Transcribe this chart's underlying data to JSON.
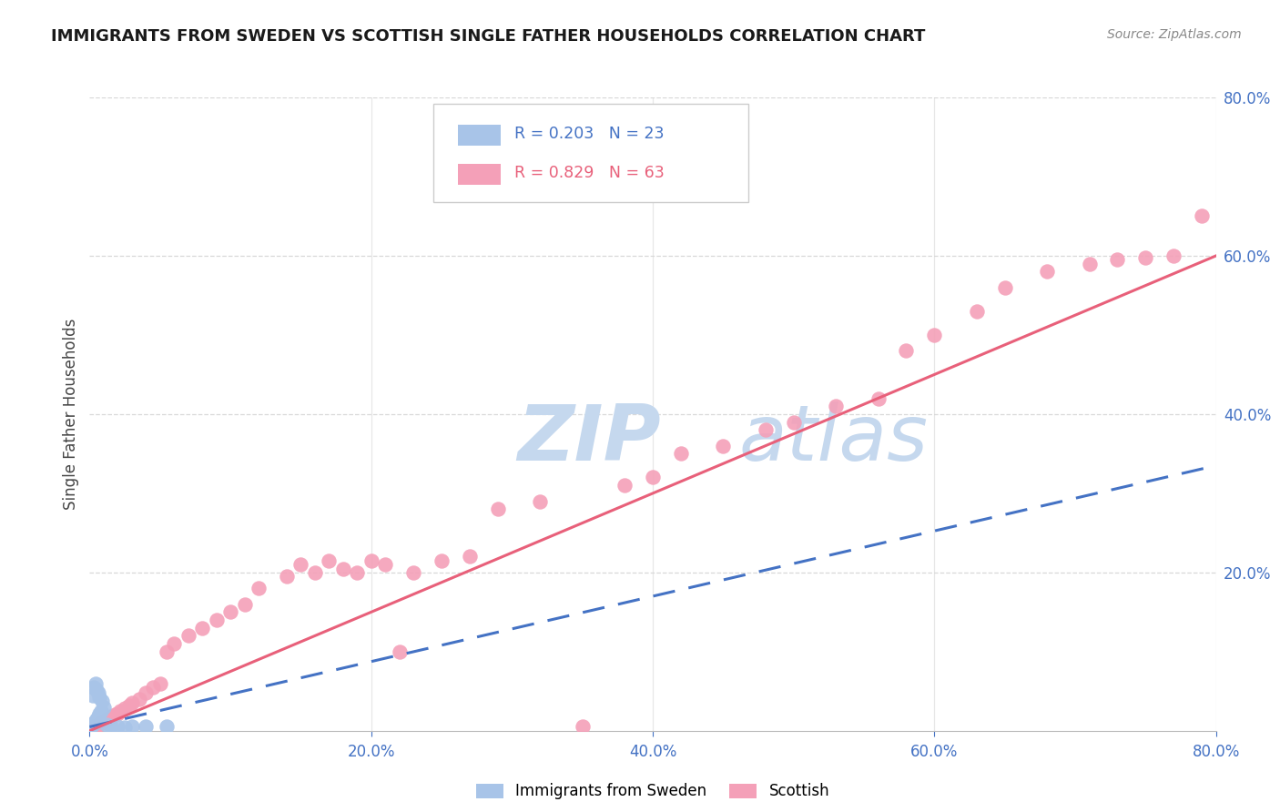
{
  "title": "IMMIGRANTS FROM SWEDEN VS SCOTTISH SINGLE FATHER HOUSEHOLDS CORRELATION CHART",
  "source": "Source: ZipAtlas.com",
  "ylabel": "Single Father Households",
  "xlim": [
    0.0,
    0.8
  ],
  "ylim": [
    0.0,
    0.8
  ],
  "xtick_vals": [
    0.0,
    0.2,
    0.4,
    0.6,
    0.8
  ],
  "xtick_labels": [
    "0.0%",
    "20.0%",
    "40.0%",
    "60.0%",
    "80.0%"
  ],
  "ytick_vals": [
    0.2,
    0.4,
    0.6,
    0.8
  ],
  "ytick_labels": [
    "20.0%",
    "40.0%",
    "60.0%",
    "80.0%"
  ],
  "sweden_R": 0.203,
  "sweden_N": 23,
  "scottish_R": 0.829,
  "scottish_N": 63,
  "sweden_color": "#a8c4e8",
  "scottish_color": "#f4a0b8",
  "sweden_line_color": "#4472c4",
  "scottish_line_color": "#e8607a",
  "watermark_zip_color": "#c5d8ee",
  "watermark_atlas_color": "#c5d8ee",
  "background_color": "#ffffff",
  "grid_color": "#d8d8d8",
  "tick_color": "#4472c4",
  "title_color": "#1a1a1a",
  "source_color": "#888888",
  "ylabel_color": "#444444",
  "sweden_x": [
    0.001,
    0.002,
    0.002,
    0.003,
    0.003,
    0.004,
    0.004,
    0.005,
    0.005,
    0.006,
    0.006,
    0.007,
    0.007,
    0.008,
    0.009,
    0.01,
    0.012,
    0.015,
    0.02,
    0.025,
    0.03,
    0.04,
    0.055
  ],
  "sweden_y": [
    0.005,
    0.008,
    0.045,
    0.01,
    0.055,
    0.012,
    0.06,
    0.015,
    0.052,
    0.018,
    0.048,
    0.022,
    0.042,
    0.025,
    0.038,
    0.03,
    0.008,
    0.006,
    0.005,
    0.004,
    0.005,
    0.006,
    0.005
  ],
  "scottish_x": [
    0.001,
    0.002,
    0.003,
    0.004,
    0.005,
    0.006,
    0.007,
    0.008,
    0.009,
    0.01,
    0.012,
    0.015,
    0.018,
    0.02,
    0.022,
    0.025,
    0.028,
    0.03,
    0.035,
    0.04,
    0.045,
    0.05,
    0.055,
    0.06,
    0.07,
    0.08,
    0.09,
    0.1,
    0.11,
    0.12,
    0.14,
    0.15,
    0.16,
    0.17,
    0.18,
    0.19,
    0.2,
    0.21,
    0.22,
    0.23,
    0.25,
    0.27,
    0.29,
    0.32,
    0.35,
    0.38,
    0.4,
    0.42,
    0.45,
    0.48,
    0.5,
    0.53,
    0.56,
    0.58,
    0.6,
    0.63,
    0.65,
    0.68,
    0.71,
    0.73,
    0.75,
    0.77,
    0.79
  ],
  "scottish_y": [
    0.002,
    0.004,
    0.005,
    0.006,
    0.007,
    0.008,
    0.009,
    0.01,
    0.011,
    0.012,
    0.015,
    0.018,
    0.02,
    0.022,
    0.025,
    0.028,
    0.032,
    0.035,
    0.04,
    0.048,
    0.055,
    0.06,
    0.1,
    0.11,
    0.12,
    0.13,
    0.14,
    0.15,
    0.16,
    0.18,
    0.195,
    0.21,
    0.2,
    0.215,
    0.205,
    0.2,
    0.215,
    0.21,
    0.1,
    0.2,
    0.215,
    0.22,
    0.28,
    0.29,
    0.005,
    0.31,
    0.32,
    0.35,
    0.36,
    0.38,
    0.39,
    0.41,
    0.42,
    0.48,
    0.5,
    0.53,
    0.56,
    0.58,
    0.59,
    0.595,
    0.598,
    0.6,
    0.65
  ],
  "sweden_line_x": [
    0.0,
    0.8
  ],
  "sweden_line_y": [
    0.005,
    0.335
  ],
  "scottish_line_x": [
    0.0,
    0.8
  ],
  "scottish_line_y": [
    0.0,
    0.6
  ]
}
